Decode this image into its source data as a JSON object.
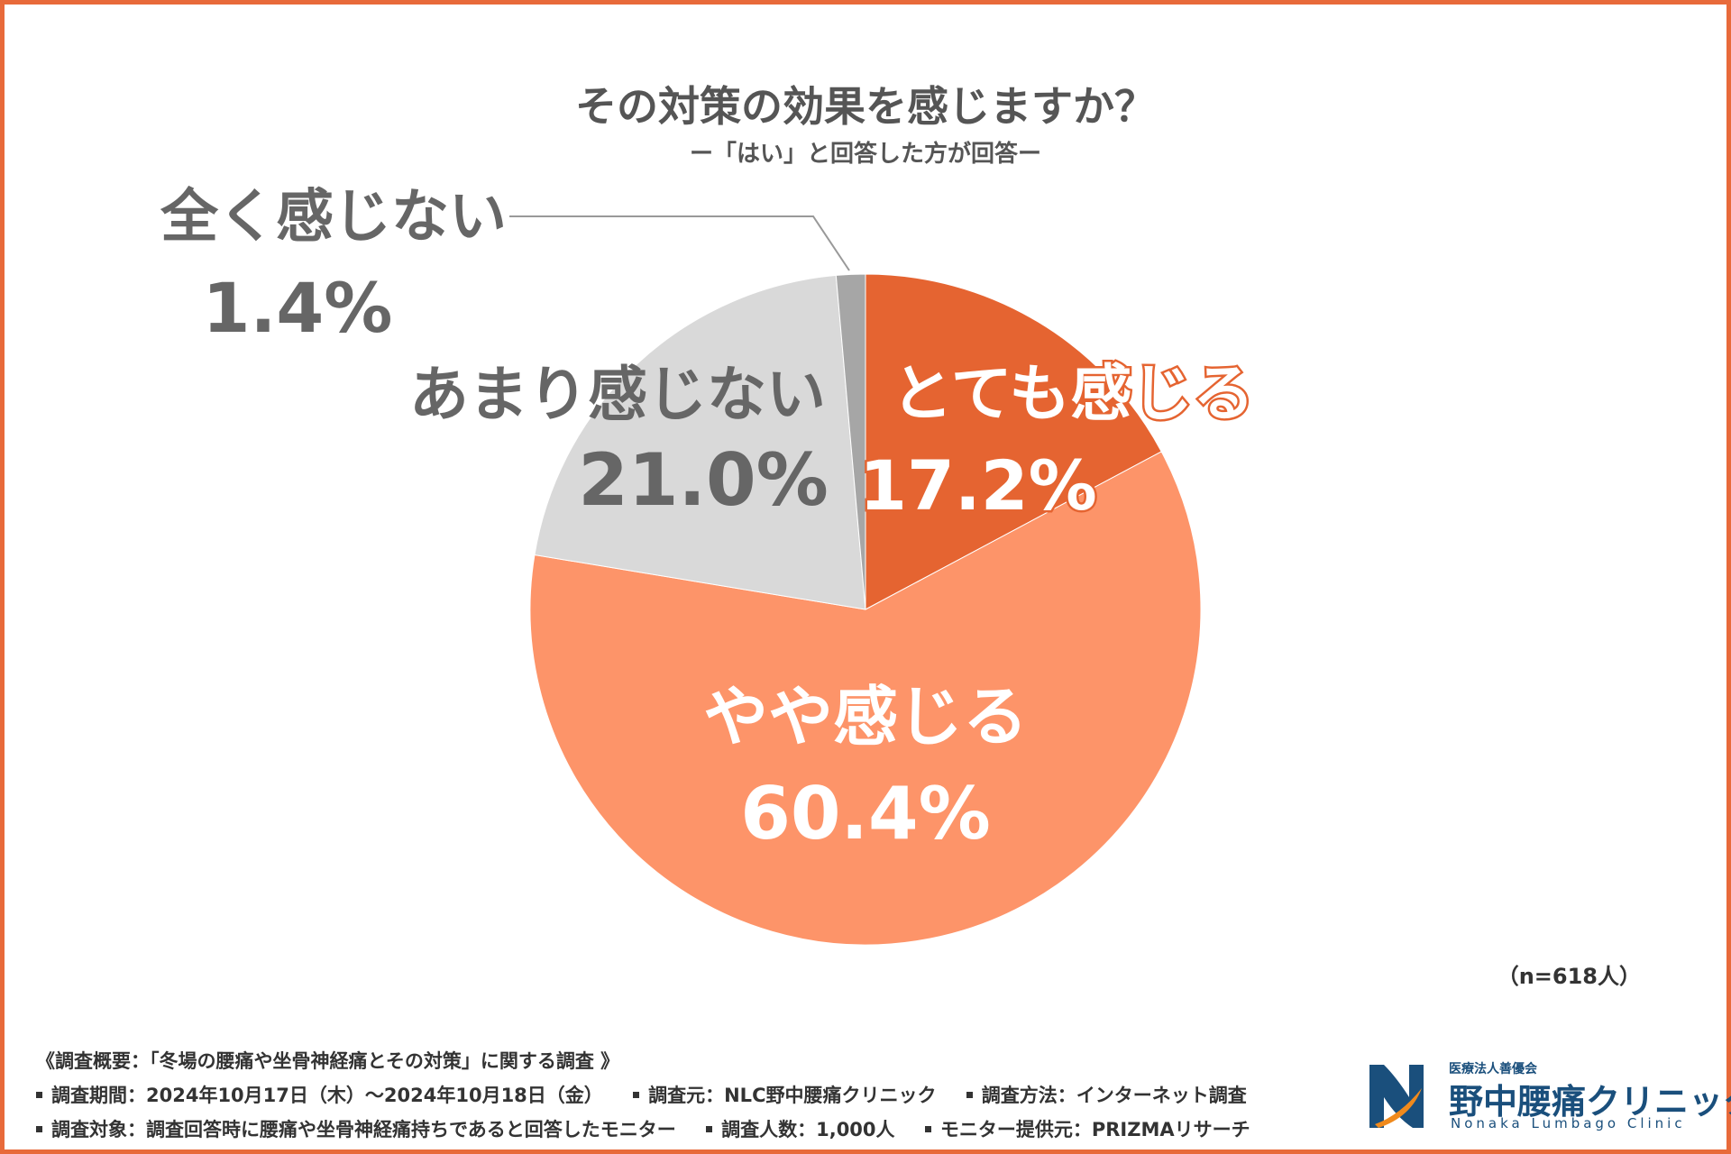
{
  "chart_data": {
    "type": "pie",
    "title": "その対策の効果を感じますか？",
    "subtitle": "ー「はい」と回答した方が回答ー",
    "sample_size": "（n=618人）",
    "slices": [
      {
        "label": "とても感じる",
        "value": 17.2,
        "value_label": "17.2%",
        "color": "#e56431"
      },
      {
        "label": "やや感じる",
        "value": 60.4,
        "value_label": "60.4%",
        "color": "#fd9469"
      },
      {
        "label": "あまり感じない",
        "value": 21.0,
        "value_label": "21.0%",
        "color": "#d9d9d9"
      },
      {
        "label": "全く感じない",
        "value": 1.4,
        "value_label": "1.4%",
        "color": "#a6a6a6"
      }
    ],
    "start": "12 o'clock",
    "direction": "clockwise"
  },
  "notes": {
    "overview": "《調査概要：「冬場の腰痛や坐骨神経痛とその対策」に関する調査 》",
    "period": "調査期間：2024年10月17日（木）～2024年10月18日（金）",
    "source": "調査元：NLC野中腰痛クリニック",
    "method": "調査方法：インターネット調査",
    "target": "調査対象：調査回答時に腰痛や坐骨神経痛持ちであると回答したモニター",
    "count": "調査人数：1,000人",
    "provider": "モニター提供元：PRIZMAリサーチ"
  },
  "logo": {
    "sub": "医療法人善優会",
    "name": "野中腰痛クリニック",
    "en": "Nonaka Lumbago Clinic",
    "colors": {
      "navy": "#1a4f7c",
      "orange": "#f08a1c"
    }
  }
}
